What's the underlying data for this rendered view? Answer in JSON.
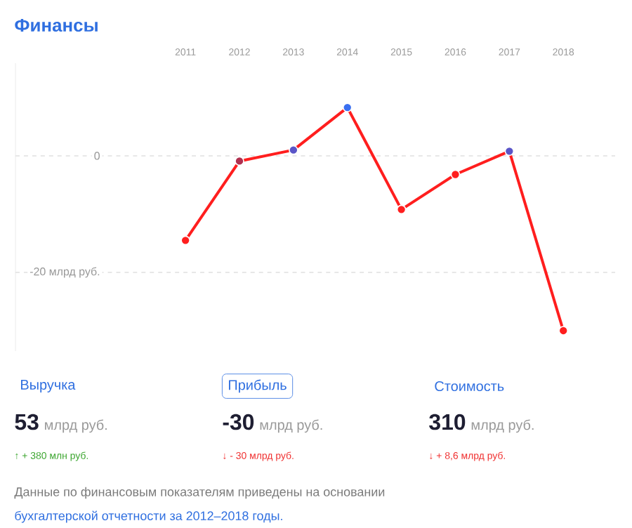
{
  "chart_data": {
    "type": "line",
    "title": "Финансы",
    "x": [
      2011,
      2012,
      2013,
      2014,
      2015,
      2016,
      2017,
      2018
    ],
    "series": [
      {
        "color": "#ff1e1e",
        "colors": [
          "#ff1e1e",
          "#b0304f",
          "#5a55c8",
          "#3a6ff0",
          "#ff1e1e",
          "#ff1e1e",
          "#5a55c8",
          "#ff1e1e"
        ],
        "values": [
          -14.5,
          -0.9,
          1.0,
          8.3,
          -9.2,
          -3.2,
          0.8,
          -30
        ]
      }
    ],
    "xlim": [
      2007.85,
      2018.96
    ],
    "ylim": [
      -33.5,
      15.9
    ],
    "xticks": [
      2011,
      2012,
      2013,
      2014,
      2015,
      2016,
      2017,
      2018
    ],
    "yticks": [
      {
        "value": 0,
        "label": "0"
      },
      {
        "value": -20,
        "label": "-20 млрд руб."
      }
    ],
    "grid": "y",
    "marker": "circle",
    "line_style": "solid",
    "annotations": [
      "Выручка",
      "53",
      "млрд руб.",
      "↑ + 380 млн руб.",
      "Прибыль",
      "-30",
      "млрд руб.",
      "↓ - 30 млрд руб.",
      "Стоимость",
      "310",
      "млрд руб.",
      "↓ + 8,6 млрд руб.",
      "Данные по финансовым показателям приведены на основании",
      "бухгалтерской отчетности за 2012–2018 годы."
    ]
  }
}
